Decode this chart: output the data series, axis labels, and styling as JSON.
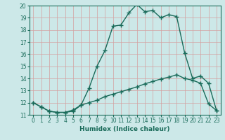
{
  "xlabel": "Humidex (Indice chaleur)",
  "bg_color": "#cce8e8",
  "grid_color": "#d4a0a0",
  "line_color": "#1a6b5a",
  "curve1_x": [
    0,
    1,
    2,
    3,
    4,
    5,
    6,
    7,
    8,
    9,
    10,
    11,
    12,
    13,
    14,
    15,
    16,
    17,
    18,
    19,
    20,
    21,
    22,
    23
  ],
  "curve1_y": [
    12.0,
    11.65,
    11.3,
    11.2,
    11.2,
    11.3,
    11.8,
    13.2,
    15.0,
    16.3,
    18.3,
    18.4,
    19.4,
    20.1,
    19.5,
    19.6,
    19.0,
    19.25,
    19.1,
    16.1,
    14.0,
    14.2,
    13.6,
    11.35
  ],
  "curve2_x": [
    0,
    1,
    2,
    3,
    4,
    5,
    6,
    7,
    8,
    9,
    10,
    11,
    12,
    13,
    14,
    15,
    16,
    17,
    18,
    19,
    20,
    21,
    22,
    23
  ],
  "curve2_y": [
    12.0,
    11.65,
    11.3,
    11.2,
    11.2,
    11.4,
    11.8,
    12.0,
    12.2,
    12.5,
    12.7,
    12.9,
    13.1,
    13.3,
    13.55,
    13.75,
    13.95,
    14.1,
    14.3,
    14.0,
    13.85,
    13.6,
    11.9,
    11.35
  ],
  "xlim_min": -0.5,
  "xlim_max": 23.5,
  "ylim_min": 11,
  "ylim_max": 20,
  "yticks": [
    11,
    12,
    13,
    14,
    15,
    16,
    17,
    18,
    19,
    20
  ],
  "xticks": [
    0,
    1,
    2,
    3,
    4,
    5,
    6,
    7,
    8,
    9,
    10,
    11,
    12,
    13,
    14,
    15,
    16,
    17,
    18,
    19,
    20,
    21,
    22,
    23
  ],
  "marker": "+",
  "marker_size": 4,
  "line_width": 1.0,
  "tick_fontsize": 5.5,
  "xlabel_fontsize": 6.5
}
